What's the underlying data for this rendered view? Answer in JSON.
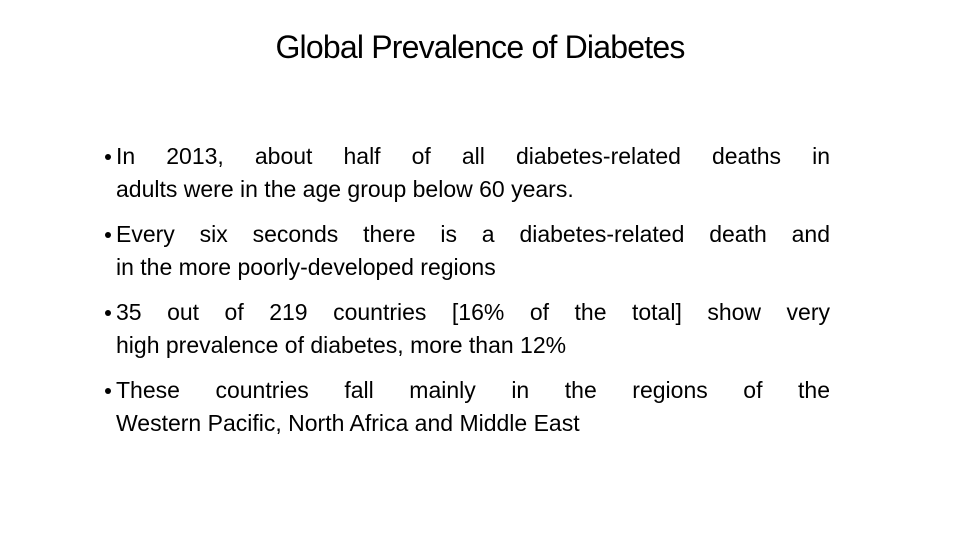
{
  "title": "Global Prevalence of Diabetes",
  "bullets": [
    {
      "lines": [
        "In 2013, about half of all diabetes-related deaths in",
        "adults were in the age group below 60 years."
      ]
    },
    {
      "lines": [
        "Every six seconds there is a diabetes-related death and",
        "in the more poorly-developed regions"
      ]
    },
    {
      "lines": [
        "35 out of 219 countries [16% of the total] show very",
        "high prevalence of diabetes, more than 12%"
      ]
    },
    {
      "lines": [
        "These countries fall mainly in the regions of the",
        "Western Pacific, North Africa and Middle East"
      ]
    }
  ]
}
